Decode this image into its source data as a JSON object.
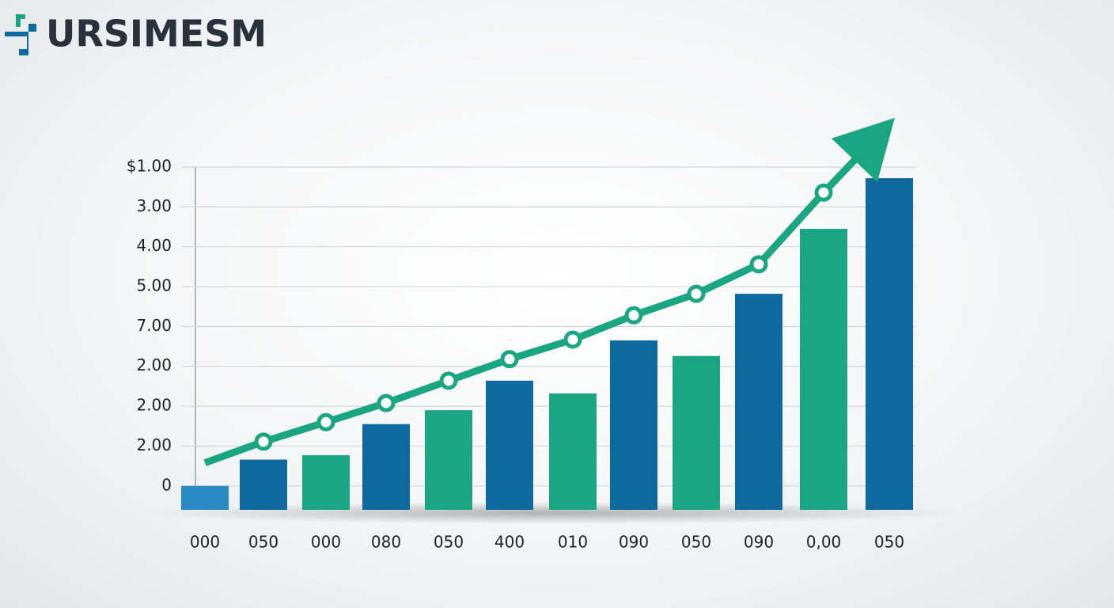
{
  "chart_data": {
    "type": "bar",
    "title": "URSIMESM",
    "categories": [
      "000",
      "050",
      "000",
      "080",
      "050",
      "400",
      "010",
      "090",
      "050",
      "090",
      "0,00",
      "050"
    ],
    "series": [
      {
        "type": "bar",
        "colors": [
          "#2a8ac4",
          "#0e6a9e",
          "#1aa683",
          "#0e6a9e",
          "#1aa683",
          "#0e6a9e",
          "#1aa683",
          "#0e6a9e",
          "#1aa683",
          "#0e6a9e",
          "#1aa683",
          "#0e6a9e"
        ],
        "values": [
          0,
          0.66,
          0.77,
          1.55,
          1.9,
          2.64,
          2.32,
          3.65,
          3.26,
          4.82,
          6.45,
          7.72
        ]
      },
      {
        "type": "line",
        "color": "#1aa683",
        "values": [
          0.58,
          1.11,
          1.6,
          2.08,
          2.64,
          3.18,
          3.67,
          4.28,
          4.82,
          5.56,
          7.36,
          9.09
        ]
      }
    ],
    "ylim": [
      -0.6,
      8
    ],
    "yticks": [
      {
        "value": 0,
        "label": "0"
      },
      {
        "value": 1,
        "label": "2.00"
      },
      {
        "value": 2,
        "label": "2.00"
      },
      {
        "value": 3,
        "label": "2.00"
      },
      {
        "value": 4,
        "label": "7.00"
      },
      {
        "value": 5,
        "label": "5.00"
      },
      {
        "value": 6,
        "label": "4.00"
      },
      {
        "value": 7,
        "label": "3.00"
      },
      {
        "value": 8,
        "label": "$1.00"
      }
    ],
    "grid": true
  }
}
